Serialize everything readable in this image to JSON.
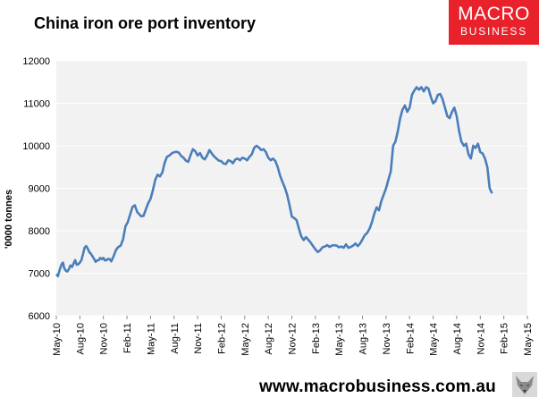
{
  "title": "China iron ore port inventory",
  "brand": {
    "line1": "MACRO",
    "line2": "BUSINESS",
    "color": "#e8212b"
  },
  "footer_url": "www.macrobusiness.com.au",
  "colors": {
    "plot_bg": "#f2f2f2",
    "line": "#4a7ebb",
    "grid": "#ffffff"
  },
  "chart_data": {
    "type": "line",
    "title": "China iron ore port inventory",
    "xlabel": "",
    "ylabel": "'0000 tonnes",
    "ylim": [
      6000,
      12000
    ],
    "yticks": [
      6000,
      7000,
      8000,
      9000,
      10000,
      11000,
      12000
    ],
    "xlim": [
      0,
      60
    ],
    "x_ticks": [
      {
        "label": "May-10",
        "x": 0
      },
      {
        "label": "Aug-10",
        "x": 3
      },
      {
        "label": "Nov-10",
        "x": 6
      },
      {
        "label": "Feb-11",
        "x": 9
      },
      {
        "label": "May-11",
        "x": 12
      },
      {
        "label": "Aug-11",
        "x": 15
      },
      {
        "label": "Nov-11",
        "x": 18
      },
      {
        "label": "Feb-12",
        "x": 21
      },
      {
        "label": "May-12",
        "x": 24
      },
      {
        "label": "Aug-12",
        "x": 27
      },
      {
        "label": "Nov-12",
        "x": 30
      },
      {
        "label": "Feb-13",
        "x": 33
      },
      {
        "label": "May-13",
        "x": 36
      },
      {
        "label": "Aug-13",
        "x": 39
      },
      {
        "label": "Nov-13",
        "x": 42
      },
      {
        "label": "Feb-14",
        "x": 45
      },
      {
        "label": "May-14",
        "x": 48
      },
      {
        "label": "Aug-14",
        "x": 51
      },
      {
        "label": "Nov-14",
        "x": 54
      },
      {
        "label": "Feb-15",
        "x": 57
      },
      {
        "label": "May-15",
        "x": 60
      }
    ],
    "grid": "horizontal",
    "legend": "none",
    "series": [
      {
        "points": [
          [
            0.0,
            6980
          ],
          [
            0.2,
            6930
          ],
          [
            0.45,
            7100
          ],
          [
            0.7,
            7220
          ],
          [
            0.85,
            7250
          ],
          [
            1.0,
            7120
          ],
          [
            1.2,
            7060
          ],
          [
            1.4,
            7040
          ],
          [
            1.6,
            7100
          ],
          [
            1.8,
            7180
          ],
          [
            2.0,
            7150
          ],
          [
            2.2,
            7230
          ],
          [
            2.4,
            7310
          ],
          [
            2.6,
            7200
          ],
          [
            2.8,
            7210
          ],
          [
            3.0,
            7250
          ],
          [
            3.2,
            7310
          ],
          [
            3.4,
            7450
          ],
          [
            3.6,
            7600
          ],
          [
            3.8,
            7640
          ],
          [
            4.0,
            7580
          ],
          [
            4.2,
            7500
          ],
          [
            4.4,
            7460
          ],
          [
            4.6,
            7400
          ],
          [
            4.8,
            7340
          ],
          [
            5.0,
            7270
          ],
          [
            5.2,
            7300
          ],
          [
            5.4,
            7310
          ],
          [
            5.6,
            7360
          ],
          [
            5.8,
            7330
          ],
          [
            6.0,
            7360
          ],
          [
            6.2,
            7300
          ],
          [
            6.4,
            7310
          ],
          [
            6.6,
            7340
          ],
          [
            6.8,
            7330
          ],
          [
            7.0,
            7280
          ],
          [
            7.3,
            7400
          ],
          [
            7.6,
            7550
          ],
          [
            7.9,
            7620
          ],
          [
            8.2,
            7650
          ],
          [
            8.5,
            7800
          ],
          [
            8.8,
            8100
          ],
          [
            9.1,
            8200
          ],
          [
            9.4,
            8380
          ],
          [
            9.7,
            8560
          ],
          [
            10.0,
            8600
          ],
          [
            10.3,
            8440
          ],
          [
            10.6,
            8380
          ],
          [
            10.8,
            8340
          ],
          [
            11.1,
            8350
          ],
          [
            11.4,
            8500
          ],
          [
            11.7,
            8650
          ],
          [
            12.0,
            8750
          ],
          [
            12.3,
            8950
          ],
          [
            12.6,
            9200
          ],
          [
            12.9,
            9320
          ],
          [
            13.2,
            9280
          ],
          [
            13.5,
            9370
          ],
          [
            13.8,
            9600
          ],
          [
            14.1,
            9740
          ],
          [
            14.4,
            9770
          ],
          [
            14.7,
            9820
          ],
          [
            15.0,
            9850
          ],
          [
            15.3,
            9860
          ],
          [
            15.6,
            9840
          ],
          [
            15.9,
            9760
          ],
          [
            16.2,
            9720
          ],
          [
            16.5,
            9650
          ],
          [
            16.8,
            9620
          ],
          [
            17.1,
            9780
          ],
          [
            17.4,
            9920
          ],
          [
            17.7,
            9870
          ],
          [
            18.0,
            9770
          ],
          [
            18.3,
            9830
          ],
          [
            18.6,
            9720
          ],
          [
            18.9,
            9680
          ],
          [
            19.2,
            9770
          ],
          [
            19.5,
            9900
          ],
          [
            19.8,
            9820
          ],
          [
            20.1,
            9750
          ],
          [
            20.4,
            9700
          ],
          [
            20.7,
            9650
          ],
          [
            21.0,
            9640
          ],
          [
            21.3,
            9580
          ],
          [
            21.6,
            9570
          ],
          [
            21.9,
            9660
          ],
          [
            22.2,
            9640
          ],
          [
            22.5,
            9590
          ],
          [
            22.8,
            9680
          ],
          [
            23.1,
            9700
          ],
          [
            23.4,
            9660
          ],
          [
            23.7,
            9720
          ],
          [
            24.0,
            9700
          ],
          [
            24.3,
            9660
          ],
          [
            24.6,
            9740
          ],
          [
            24.9,
            9800
          ],
          [
            25.2,
            9950
          ],
          [
            25.5,
            10000
          ],
          [
            25.8,
            9960
          ],
          [
            26.1,
            9900
          ],
          [
            26.4,
            9920
          ],
          [
            26.7,
            9850
          ],
          [
            27.0,
            9720
          ],
          [
            27.3,
            9660
          ],
          [
            27.6,
            9700
          ],
          [
            27.9,
            9640
          ],
          [
            28.2,
            9500
          ],
          [
            28.5,
            9300
          ],
          [
            28.8,
            9150
          ],
          [
            29.1,
            9020
          ],
          [
            29.4,
            8850
          ],
          [
            29.7,
            8600
          ],
          [
            30.0,
            8330
          ],
          [
            30.3,
            8300
          ],
          [
            30.6,
            8250
          ],
          [
            30.9,
            8050
          ],
          [
            31.2,
            7870
          ],
          [
            31.5,
            7780
          ],
          [
            31.8,
            7850
          ],
          [
            32.1,
            7790
          ],
          [
            32.4,
            7720
          ],
          [
            32.7,
            7640
          ],
          [
            33.0,
            7560
          ],
          [
            33.3,
            7500
          ],
          [
            33.6,
            7540
          ],
          [
            33.9,
            7610
          ],
          [
            34.2,
            7630
          ],
          [
            34.5,
            7660
          ],
          [
            34.8,
            7620
          ],
          [
            35.1,
            7650
          ],
          [
            35.4,
            7660
          ],
          [
            35.7,
            7650
          ],
          [
            36.0,
            7610
          ],
          [
            36.3,
            7630
          ],
          [
            36.6,
            7600
          ],
          [
            36.9,
            7680
          ],
          [
            37.2,
            7600
          ],
          [
            37.5,
            7620
          ],
          [
            37.8,
            7650
          ],
          [
            38.1,
            7700
          ],
          [
            38.4,
            7640
          ],
          [
            38.7,
            7700
          ],
          [
            39.0,
            7800
          ],
          [
            39.3,
            7900
          ],
          [
            39.6,
            7950
          ],
          [
            39.9,
            8050
          ],
          [
            40.2,
            8200
          ],
          [
            40.5,
            8400
          ],
          [
            40.8,
            8550
          ],
          [
            41.1,
            8480
          ],
          [
            41.4,
            8700
          ],
          [
            41.7,
            8850
          ],
          [
            42.0,
            9000
          ],
          [
            42.3,
            9200
          ],
          [
            42.6,
            9400
          ],
          [
            42.9,
            10000
          ],
          [
            43.2,
            10100
          ],
          [
            43.5,
            10350
          ],
          [
            43.8,
            10650
          ],
          [
            44.1,
            10850
          ],
          [
            44.4,
            10950
          ],
          [
            44.7,
            10800
          ],
          [
            45.0,
            10900
          ],
          [
            45.3,
            11200
          ],
          [
            45.6,
            11300
          ],
          [
            45.9,
            11380
          ],
          [
            46.2,
            11320
          ],
          [
            46.5,
            11380
          ],
          [
            46.8,
            11280
          ],
          [
            47.1,
            11380
          ],
          [
            47.4,
            11350
          ],
          [
            47.7,
            11150
          ],
          [
            48.0,
            11000
          ],
          [
            48.3,
            11050
          ],
          [
            48.6,
            11200
          ],
          [
            48.9,
            11220
          ],
          [
            49.2,
            11100
          ],
          [
            49.5,
            10900
          ],
          [
            49.8,
            10700
          ],
          [
            50.1,
            10650
          ],
          [
            50.4,
            10800
          ],
          [
            50.7,
            10900
          ],
          [
            51.0,
            10700
          ],
          [
            51.3,
            10350
          ],
          [
            51.6,
            10100
          ],
          [
            51.9,
            10000
          ],
          [
            52.2,
            10050
          ],
          [
            52.5,
            9800
          ],
          [
            52.8,
            9700
          ],
          [
            53.1,
            10000
          ],
          [
            53.4,
            9950
          ],
          [
            53.7,
            10050
          ],
          [
            54.0,
            9850
          ],
          [
            54.3,
            9820
          ],
          [
            54.6,
            9700
          ],
          [
            54.9,
            9500
          ],
          [
            55.2,
            9000
          ],
          [
            55.5,
            8880
          ]
        ]
      }
    ]
  }
}
